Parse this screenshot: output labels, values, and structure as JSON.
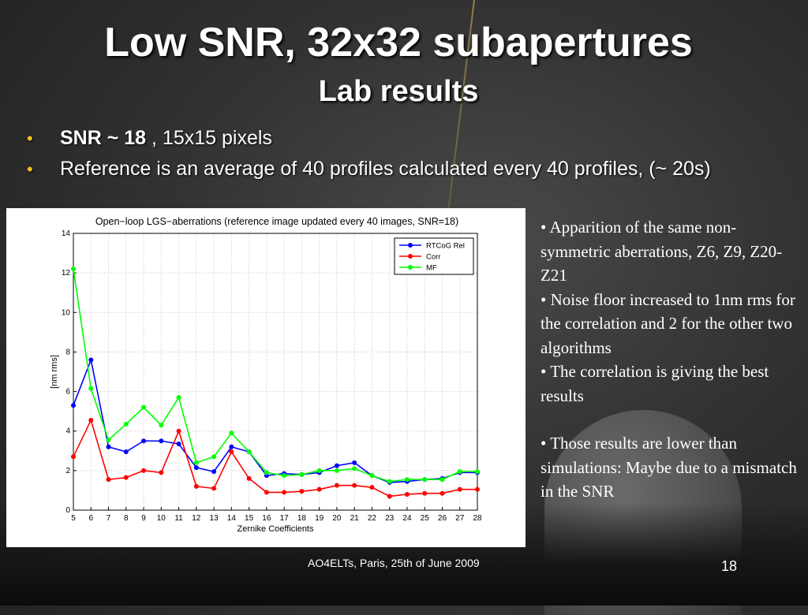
{
  "slide": {
    "title": "Low SNR, 32x32 subapertures",
    "subtitle": "Lab results",
    "bullets": [
      {
        "bold": "SNR ~ 18",
        "rest": " , 15x15 pixels"
      },
      {
        "bold": "",
        "rest": "Reference is an average of 40 profiles calculated every 40 profiles, (~ 20s)"
      }
    ],
    "side_notes": [
      "• Apparition of the same non-symmetric aberrations, Z6, Z9, Z20-Z21",
      "• Noise floor increased to 1nm rms for the correlation and 2 for the other two algorithms",
      "• The correlation is giving the best results",
      "• Those results are lower than simulations: Maybe due to a mismatch in the SNR"
    ],
    "footer": "AO4ELTs, Paris, 25th of June 2009",
    "page_number": "18"
  },
  "chart_data": {
    "type": "line",
    "title": "Open−loop  LGS−aberrations (reference image updated every 40 images, SNR=18)",
    "xlabel": "Zernike Coefficients",
    "ylabel": "[nm rms]",
    "x": [
      5,
      6,
      7,
      8,
      9,
      10,
      11,
      12,
      13,
      14,
      15,
      16,
      17,
      18,
      19,
      20,
      21,
      22,
      23,
      24,
      25,
      26,
      27,
      28
    ],
    "xlim": [
      5,
      28
    ],
    "ylim": [
      0,
      14
    ],
    "yticks": [
      0,
      2,
      4,
      6,
      8,
      10,
      12,
      14
    ],
    "grid": true,
    "legend_position": "top-right",
    "series": [
      {
        "name": "RTCoG Rel",
        "color": "#0000ff",
        "values": [
          5.3,
          7.6,
          3.2,
          2.95,
          3.5,
          3.5,
          3.35,
          2.15,
          1.95,
          3.2,
          2.95,
          1.75,
          1.85,
          1.8,
          1.9,
          2.25,
          2.4,
          1.75,
          1.4,
          1.45,
          1.55,
          1.6,
          1.9,
          1.9
        ]
      },
      {
        "name": "Corr",
        "color": "#ff0000",
        "values": [
          2.7,
          4.55,
          1.55,
          1.65,
          2.0,
          1.9,
          4.0,
          1.2,
          1.1,
          2.95,
          1.6,
          0.9,
          0.9,
          0.95,
          1.05,
          1.25,
          1.25,
          1.15,
          0.7,
          0.8,
          0.85,
          0.85,
          1.05,
          1.05
        ]
      },
      {
        "name": "MF",
        "color": "#00ff00",
        "values": [
          12.2,
          6.15,
          3.55,
          4.35,
          5.2,
          4.3,
          5.7,
          2.4,
          2.7,
          3.9,
          2.95,
          1.9,
          1.75,
          1.8,
          2.0,
          2.0,
          2.1,
          1.75,
          1.45,
          1.55,
          1.55,
          1.55,
          1.95,
          1.95
        ]
      }
    ],
    "colors": {
      "text": "#000000",
      "grid": "#c8c8c8"
    }
  }
}
